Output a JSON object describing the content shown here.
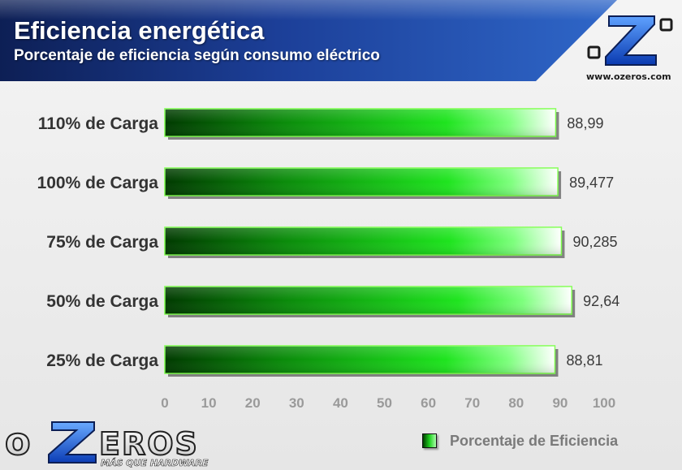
{
  "header": {
    "title": "Eficiencia energética",
    "subtitle": "Porcentaje de eficiencia según consumo eléctrico",
    "site_url": "www.ozeros.com",
    "logo_text": "OZEROS",
    "logo_tagline": "MÁS QUE HARDWARE",
    "logo_mark": "oZo"
  },
  "colors": {
    "header_blue_dark": "#0d1f55",
    "header_blue_light": "#2f67c9",
    "bar_dark": "#003a00",
    "bar_mid": "#1ee41e",
    "bar_light": "#ffffff",
    "bar_border": "#7cff4a",
    "label_gray": "#333333",
    "tick_gray": "#9a9a9a"
  },
  "chart_data": {
    "type": "bar",
    "orientation": "horizontal",
    "title": "Eficiencia energética",
    "subtitle": "Porcentaje de eficiencia según consumo eléctrico",
    "categories": [
      "110% de Carga",
      "100% de Carga",
      "75% de Carga",
      "50% de Carga",
      "25% de Carga"
    ],
    "series": [
      {
        "name": "Porcentaje de Eficiencia",
        "values": [
          88.99,
          89.477,
          90.285,
          92.64,
          88.81
        ],
        "labels": [
          "88,99",
          "89,477",
          "90,285",
          "92,64",
          "88,81"
        ]
      }
    ],
    "xlim": [
      0,
      100
    ],
    "xticks": [
      "0",
      "10",
      "20",
      "30",
      "40",
      "50",
      "60",
      "70",
      "80",
      "90",
      "100"
    ],
    "grid": false,
    "legend_position": "bottom-right"
  }
}
